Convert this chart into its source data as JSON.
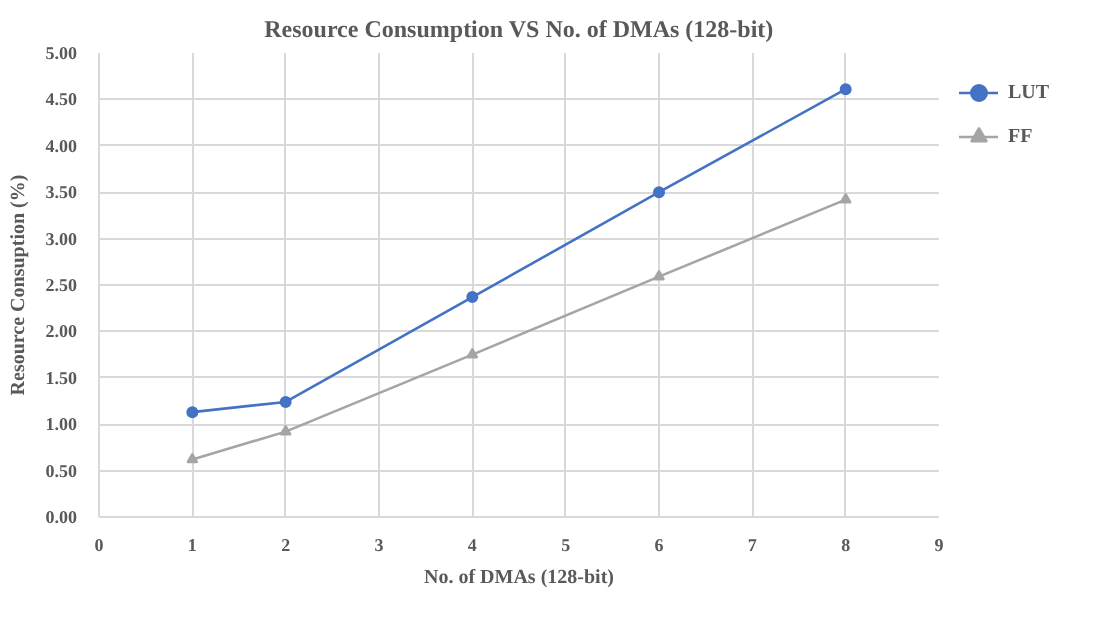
{
  "chart_data": {
    "type": "line",
    "title": "Resource Consumption VS No. of DMAs (128-bit)",
    "xlabel": "No. of DMAs (128-bit)",
    "ylabel": "Resource Consuption (%)",
    "x": [
      1,
      2,
      4,
      6,
      8
    ],
    "series": [
      {
        "name": "LUT",
        "color": "#4472c4",
        "marker": "circle",
        "values": [
          1.13,
          1.24,
          2.37,
          3.5,
          4.61
        ]
      },
      {
        "name": "FF",
        "color": "#a5a5a5",
        "marker": "triangle",
        "values": [
          0.62,
          0.92,
          1.75,
          2.59,
          3.42
        ]
      }
    ],
    "xlim": [
      0,
      9
    ],
    "xticks": [
      0,
      1,
      2,
      3,
      4,
      5,
      6,
      7,
      8,
      9
    ],
    "ylim": [
      0,
      5
    ],
    "yticks": [
      {
        "value": 0,
        "label": "0.00"
      },
      {
        "value": 0.5,
        "label": "0.50"
      },
      {
        "value": 1,
        "label": "1.00"
      },
      {
        "value": 1.5,
        "label": "1.50"
      },
      {
        "value": 2,
        "label": "2.00"
      },
      {
        "value": 2.5,
        "label": "2.50"
      },
      {
        "value": 3,
        "label": "3.00"
      },
      {
        "value": 3.5,
        "label": "3.50"
      },
      {
        "value": 4,
        "label": "4.00"
      },
      {
        "value": 4.5,
        "label": "4.50"
      },
      {
        "value": 5,
        "label": "5.00"
      }
    ],
    "grid": true,
    "legend": "right",
    "line_style": "solid"
  }
}
